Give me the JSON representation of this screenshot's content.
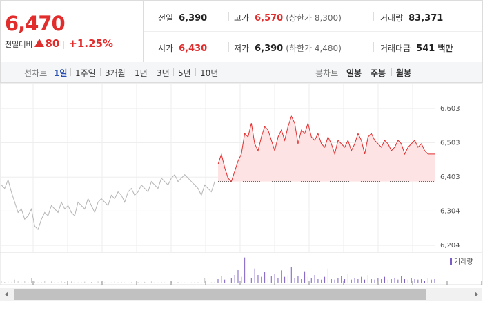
{
  "quote": {
    "price": "6,470",
    "change_label": "전일대비",
    "change": "80",
    "change_rate": "+1.25%",
    "fields": [
      {
        "label": "전일",
        "value": "6,390"
      },
      {
        "label": "고가",
        "value": "6,570",
        "note": "(상한가 8,300)"
      },
      {
        "label": "거래량",
        "value": "83,371"
      },
      {
        "label": "시가",
        "value": "6,430"
      },
      {
        "label": "저가",
        "value": "6,390",
        "note": "(하한가 4,480)"
      },
      {
        "label": "거래대금",
        "value": "541",
        "unit": "백만"
      }
    ]
  },
  "tabs": {
    "line_label": "선차트",
    "line_periods": [
      "1일",
      "1주일",
      "3개월",
      "1년",
      "3년",
      "5년",
      "10년"
    ],
    "candle_label": "봉차트",
    "candle_periods": [
      "일봉",
      "주봉",
      "월봉"
    ]
  },
  "chart_data": [
    {
      "type": "line",
      "ylim": [
        6184,
        6651
      ],
      "yticks": [
        {
          "value": 6603,
          "label": "6,603"
        },
        {
          "value": 6503,
          "label": "6,503"
        },
        {
          "value": 6403,
          "label": "6,403"
        },
        {
          "value": 6304,
          "label": "6,304"
        },
        {
          "value": 6204,
          "label": "6,204"
        }
      ],
      "grid": true,
      "baseline": 6390,
      "fill_color": "#fde3e3",
      "series": [
        {
          "color": "#b5b5b5",
          "values": [
            6380,
            6370,
            6395,
            6360,
            6330,
            6300,
            6310,
            6280,
            6290,
            6310,
            6260,
            6250,
            6280,
            6300,
            6290,
            6320,
            6310,
            6300,
            6330,
            6310,
            6320,
            6300,
            6290,
            6330,
            6320,
            6310,
            6340,
            6320,
            6300,
            6330,
            6340,
            6330,
            6320,
            6350,
            6340,
            6360,
            6350,
            6330,
            6360,
            6370,
            6350,
            6360,
            6380,
            6370,
            6360,
            6390,
            6380,
            6370,
            6400,
            6390,
            6380,
            6400,
            6410,
            6390,
            6400,
            6410,
            6400,
            6390,
            6380,
            6370,
            6350,
            6380,
            6370,
            6360,
            6390,
            null,
            null,
            null,
            null,
            null,
            null,
            null,
            null,
            null,
            null,
            null,
            null,
            null,
            null,
            null,
            null,
            null,
            null,
            null,
            null,
            null,
            null,
            null,
            null,
            null,
            null,
            null,
            null,
            null,
            null,
            null,
            null,
            null,
            null,
            null,
            null,
            null,
            null,
            null,
            null,
            null,
            null,
            null,
            null,
            null,
            null,
            null,
            null,
            null,
            null,
            null,
            null,
            null,
            null,
            null,
            null,
            null,
            null,
            null,
            null,
            null,
            null,
            null,
            null,
            null,
            null
          ]
        },
        {
          "color": "#e22d2d",
          "values": [
            null,
            null,
            null,
            null,
            null,
            null,
            null,
            null,
            null,
            null,
            null,
            null,
            null,
            null,
            null,
            null,
            null,
            null,
            null,
            null,
            null,
            null,
            null,
            null,
            null,
            null,
            null,
            null,
            null,
            null,
            null,
            null,
            null,
            null,
            null,
            null,
            null,
            null,
            null,
            null,
            null,
            null,
            null,
            null,
            null,
            null,
            null,
            null,
            null,
            null,
            null,
            null,
            null,
            null,
            null,
            null,
            null,
            null,
            null,
            null,
            null,
            null,
            null,
            null,
            null,
            6440,
            6470,
            6430,
            6400,
            6390,
            6420,
            6450,
            6470,
            6530,
            6520,
            6560,
            6500,
            6480,
            6520,
            6550,
            6540,
            6510,
            6480,
            6520,
            6540,
            6510,
            6550,
            6580,
            6560,
            6500,
            6540,
            6530,
            6560,
            6520,
            6510,
            6530,
            6500,
            6490,
            6520,
            6500,
            6470,
            6510,
            6500,
            6490,
            6510,
            6480,
            6500,
            6530,
            6510,
            6470,
            6520,
            6530,
            6510,
            6500,
            6490,
            6510,
            6500,
            6480,
            6490,
            6510,
            6500,
            6470,
            6490,
            6500,
            6510,
            6490,
            6500,
            6480,
            6470,
            6470,
            6470
          ],
          "fill": true
        }
      ]
    },
    {
      "type": "bar",
      "ylim": [
        0,
        3000
      ],
      "legend": "top-right",
      "series": [
        {
          "color": "#c8c8c8",
          "values": [
            300,
            150,
            200,
            100,
            400,
            250,
            100,
            300,
            150,
            600,
            200,
            100,
            150,
            250,
            100,
            200,
            150,
            100,
            300,
            150,
            100,
            200,
            150,
            100,
            120,
            180,
            90,
            150,
            100,
            200,
            120,
            100,
            150,
            90,
            200,
            110,
            150,
            100,
            180,
            120,
            90,
            140,
            100,
            160,
            110,
            200,
            130,
            90,
            150,
            100,
            120,
            180,
            100,
            140,
            110,
            90,
            130,
            100,
            150,
            120,
            100,
            600,
            140,
            110,
            160,
            null,
            null,
            null,
            null,
            null,
            null,
            null,
            null,
            null,
            null,
            null,
            null,
            null,
            null,
            null,
            null,
            null,
            null,
            null,
            null,
            null,
            null,
            null,
            null,
            null,
            null,
            null,
            null,
            null,
            null,
            null,
            null,
            null,
            null,
            null,
            null,
            null,
            null,
            null,
            null,
            null,
            null,
            null,
            null,
            null,
            null,
            null,
            null,
            null,
            null,
            null,
            null,
            null,
            null,
            null,
            null,
            null,
            null,
            null,
            null,
            null,
            null,
            null,
            null,
            null,
            null
          ]
        },
        {
          "name": "거래량",
          "color": "#7b5cc4",
          "values": [
            null,
            null,
            null,
            null,
            null,
            null,
            null,
            null,
            null,
            null,
            null,
            null,
            null,
            null,
            null,
            null,
            null,
            null,
            null,
            null,
            null,
            null,
            null,
            null,
            null,
            null,
            null,
            null,
            null,
            null,
            null,
            null,
            null,
            null,
            null,
            null,
            null,
            null,
            null,
            null,
            null,
            null,
            null,
            null,
            null,
            null,
            null,
            null,
            null,
            null,
            null,
            null,
            null,
            null,
            null,
            null,
            null,
            null,
            null,
            null,
            null,
            null,
            null,
            null,
            null,
            500,
            800,
            400,
            1200,
            600,
            900,
            1500,
            700,
            2800,
            1100,
            600,
            1600,
            900,
            700,
            1200,
            500,
            800,
            1000,
            600,
            1400,
            700,
            900,
            1800,
            600,
            800,
            500,
            1300,
            700,
            600,
            900,
            500,
            400,
            700,
            1600,
            500,
            400,
            600,
            800,
            500,
            1000,
            400,
            600,
            500,
            700,
            400,
            900,
            500,
            400,
            600,
            500,
            700,
            400,
            500,
            600,
            400,
            800,
            500,
            400,
            600,
            500,
            400,
            500,
            300,
            600,
            400,
            500
          ]
        }
      ]
    }
  ]
}
